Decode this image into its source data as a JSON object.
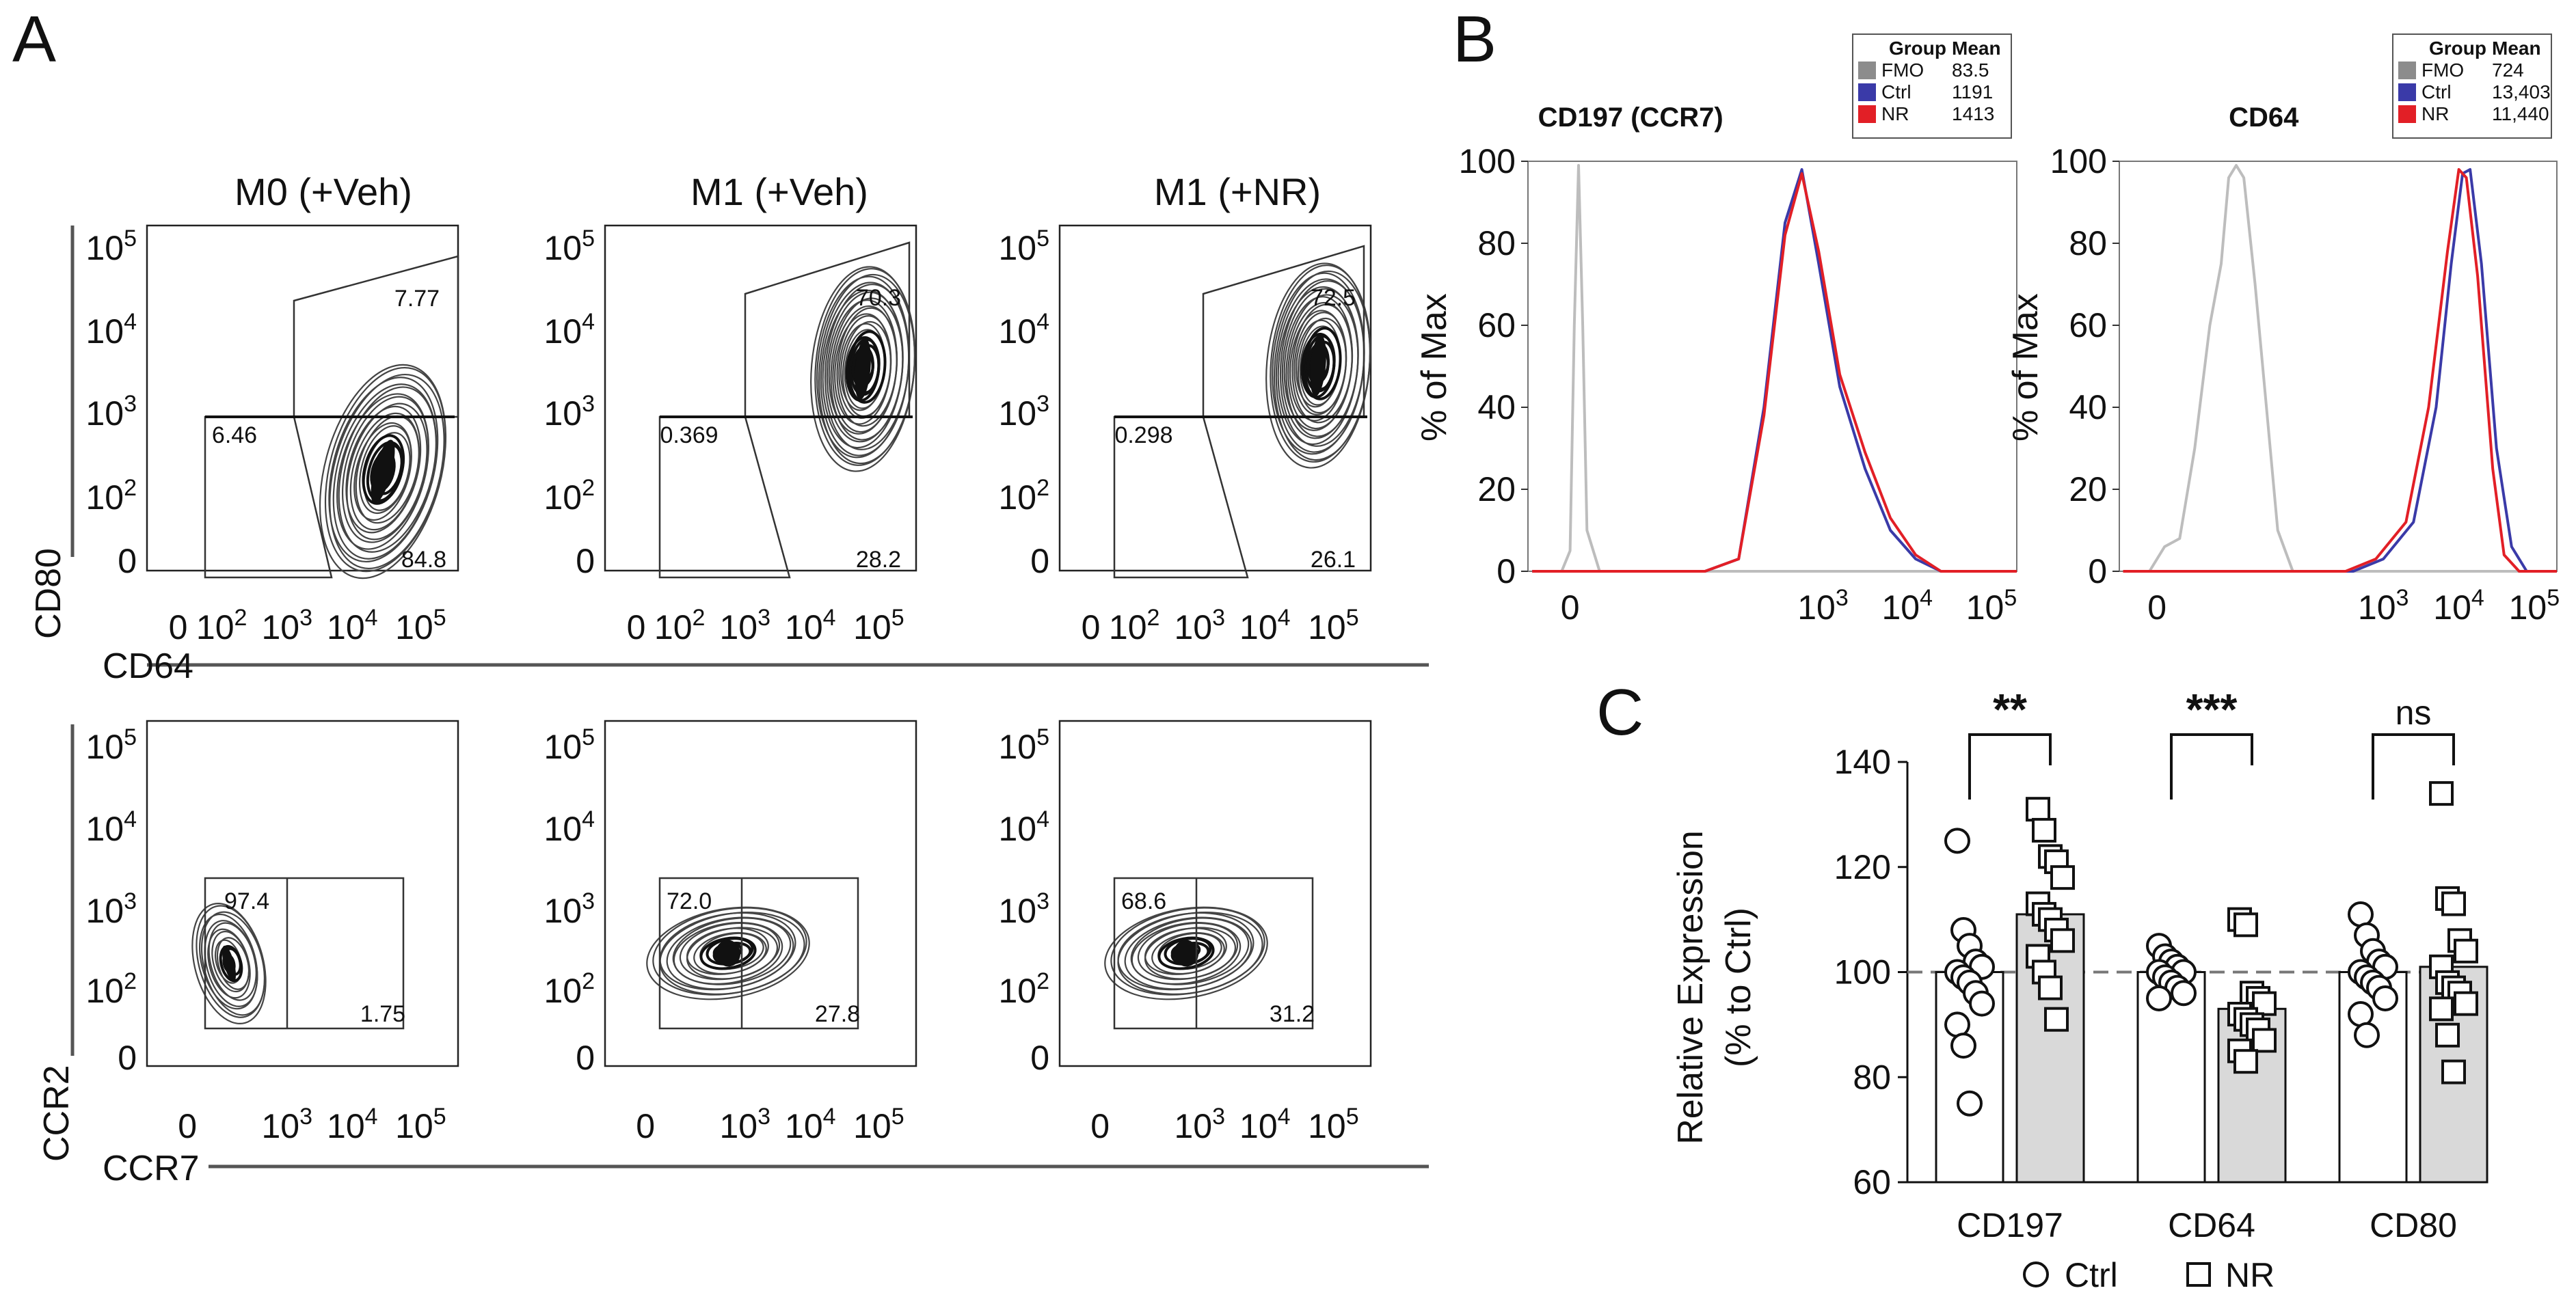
{
  "panels": {
    "A": {
      "letter": "A",
      "columns": [
        "M0 (+Veh)",
        "M1 (+Veh)",
        "M1 (+NR)"
      ],
      "rows": [
        {
          "y_label": "CD80",
          "x_label": "CD64",
          "y_ticks": [
            {
              "base": "10",
              "exp": "5"
            },
            {
              "base": "10",
              "exp": "4"
            },
            {
              "base": "10",
              "exp": "3"
            },
            {
              "base": "10",
              "exp": "2"
            },
            {
              "base": "0",
              "exp": ""
            }
          ],
          "x_ticks": [
            {
              "base": "0",
              "exp": ""
            },
            {
              "base": "10",
              "exp": "2"
            },
            {
              "base": "10",
              "exp": "3"
            },
            {
              "base": "10",
              "exp": "4"
            },
            {
              "base": "10",
              "exp": "5"
            }
          ],
          "plots": [
            {
              "gate_values": [
                "7.77",
                "6.46",
                "84.8"
              ]
            },
            {
              "gate_values": [
                "70.3",
                "0.369",
                "28.2"
              ]
            },
            {
              "gate_values": [
                "72.5",
                "0.298",
                "26.1"
              ]
            }
          ]
        },
        {
          "y_label": "CCR2",
          "x_label": "CCR7",
          "y_ticks": [
            {
              "base": "10",
              "exp": "5"
            },
            {
              "base": "10",
              "exp": "4"
            },
            {
              "base": "10",
              "exp": "3"
            },
            {
              "base": "10",
              "exp": "2"
            },
            {
              "base": "0",
              "exp": ""
            }
          ],
          "x_ticks": [
            {
              "base": "0",
              "exp": ""
            },
            {
              "base": "10",
              "exp": "3"
            },
            {
              "base": "10",
              "exp": "4"
            },
            {
              "base": "10",
              "exp": "5"
            }
          ],
          "plots": [
            {
              "gate_values": [
                "97.4",
                "1.75"
              ]
            },
            {
              "gate_values": [
                "72.0",
                "27.8"
              ]
            },
            {
              "gate_values": [
                "68.6",
                "31.2"
              ]
            }
          ]
        }
      ]
    },
    "B": {
      "letter": "B",
      "y_label": "% of Max",
      "legend_headers": [
        "Group",
        "Mean"
      ],
      "legend_groups": [
        "FMO",
        "Ctrl",
        "NR"
      ],
      "x_ticks": [
        {
          "base": "0",
          "exp": ""
        },
        {
          "base": "10",
          "exp": "3"
        },
        {
          "base": "10",
          "exp": "4"
        },
        {
          "base": "10",
          "exp": "5"
        }
      ]
    },
    "C": {
      "letter": "C",
      "y_label_line1": "Relative Expression",
      "y_label_line2": "(% to Ctrl)"
    }
  },
  "chart_data": [
    {
      "type": "line",
      "panel": "B",
      "title": "CD197 (CCR7)",
      "ylabel": "% of Max",
      "ylim": [
        0,
        100
      ],
      "xlim_log10": [
        -0.5,
        5.3
      ],
      "yticks": [
        0,
        20,
        40,
        60,
        80,
        100
      ],
      "legend": [
        {
          "group": "FMO",
          "mean": "83.5",
          "color": "#8c8c8c"
        },
        {
          "group": "Ctrl",
          "mean": "1191",
          "color": "#3a3aa8"
        },
        {
          "group": "NR",
          "mean": "1413",
          "color": "#e21f26"
        }
      ],
      "series": [
        {
          "name": "FMO",
          "color": "#bdbdbd",
          "points": [
            [
              -0.45,
              0
            ],
            [
              -0.1,
              0
            ],
            [
              0,
              5
            ],
            [
              0.05,
              60
            ],
            [
              0.1,
              99
            ],
            [
              0.15,
              60
            ],
            [
              0.2,
              10
            ],
            [
              0.35,
              0
            ],
            [
              5.3,
              0
            ]
          ]
        },
        {
          "name": "Ctrl",
          "color": "#3a3aa8",
          "points": [
            [
              -0.45,
              0
            ],
            [
              1.6,
              0
            ],
            [
              2.0,
              3
            ],
            [
              2.3,
              40
            ],
            [
              2.55,
              85
            ],
            [
              2.75,
              98
            ],
            [
              2.95,
              75
            ],
            [
              3.2,
              45
            ],
            [
              3.5,
              25
            ],
            [
              3.8,
              10
            ],
            [
              4.1,
              3
            ],
            [
              4.4,
              0
            ],
            [
              5.3,
              0
            ]
          ]
        },
        {
          "name": "NR",
          "color": "#e21f26",
          "points": [
            [
              -0.45,
              0
            ],
            [
              1.6,
              0
            ],
            [
              2.0,
              3
            ],
            [
              2.3,
              38
            ],
            [
              2.55,
              82
            ],
            [
              2.75,
              97
            ],
            [
              2.95,
              78
            ],
            [
              3.2,
              48
            ],
            [
              3.5,
              29
            ],
            [
              3.8,
              13
            ],
            [
              4.1,
              4
            ],
            [
              4.4,
              0
            ],
            [
              5.3,
              0
            ]
          ]
        }
      ],
      "xlabels": [
        "0",
        "10^3",
        "10^4",
        "10^5"
      ]
    },
    {
      "type": "line",
      "panel": "B",
      "title": "CD64",
      "ylabel": "% of Max",
      "ylim": [
        0,
        100
      ],
      "xlim_log10": [
        -0.5,
        5.3
      ],
      "yticks": [
        0,
        20,
        40,
        60,
        80,
        100
      ],
      "legend": [
        {
          "group": "FMO",
          "mean": "724",
          "color": "#8c8c8c"
        },
        {
          "group": "Ctrl",
          "mean": "13,403",
          "color": "#3a3aa8"
        },
        {
          "group": "NR",
          "mean": "11,440",
          "color": "#e21f26"
        }
      ],
      "series": [
        {
          "name": "FMO",
          "color": "#bdbdbd",
          "points": [
            [
              -0.45,
              0
            ],
            [
              -0.1,
              0
            ],
            [
              0.1,
              6
            ],
            [
              0.3,
              8
            ],
            [
              0.5,
              30
            ],
            [
              0.7,
              60
            ],
            [
              0.85,
              75
            ],
            [
              0.95,
              96
            ],
            [
              1.05,
              99
            ],
            [
              1.15,
              96
            ],
            [
              1.3,
              70
            ],
            [
              1.45,
              40
            ],
            [
              1.6,
              10
            ],
            [
              1.8,
              0
            ],
            [
              5.3,
              0
            ]
          ]
        },
        {
          "name": "Ctrl",
          "color": "#3a3aa8",
          "points": [
            [
              -0.45,
              0
            ],
            [
              2.6,
              0
            ],
            [
              3.0,
              3
            ],
            [
              3.4,
              12
            ],
            [
              3.7,
              40
            ],
            [
              3.9,
              75
            ],
            [
              4.05,
              97
            ],
            [
              4.15,
              98
            ],
            [
              4.3,
              75
            ],
            [
              4.5,
              30
            ],
            [
              4.7,
              6
            ],
            [
              4.9,
              0
            ],
            [
              5.3,
              0
            ]
          ]
        },
        {
          "name": "NR",
          "color": "#e21f26",
          "points": [
            [
              -0.45,
              0
            ],
            [
              2.5,
              0
            ],
            [
              2.9,
              3
            ],
            [
              3.3,
              12
            ],
            [
              3.6,
              40
            ],
            [
              3.85,
              78
            ],
            [
              4.0,
              98
            ],
            [
              4.1,
              96
            ],
            [
              4.25,
              72
            ],
            [
              4.45,
              25
            ],
            [
              4.6,
              4
            ],
            [
              4.8,
              0
            ],
            [
              5.3,
              0
            ]
          ]
        }
      ],
      "xlabels": [
        "0",
        "10^3",
        "10^4",
        "10^5"
      ]
    },
    {
      "type": "bar",
      "panel": "C",
      "ylabel": "Relative Expression (% to Ctrl)",
      "ylim": [
        60,
        140
      ],
      "yticks": [
        60,
        80,
        100,
        120,
        140
      ],
      "reference_line": 100,
      "categories": [
        "CD197",
        "CD64",
        "CD80"
      ],
      "significance": [
        "**",
        "***",
        "ns"
      ],
      "legend": [
        "Ctrl",
        "NR"
      ],
      "series": [
        {
          "name": "Ctrl",
          "fill": "#ffffff",
          "marker": "circle",
          "values": [
            100,
            100,
            100
          ],
          "points": [
            [
              125,
              108,
              105,
              102,
              101,
              100,
              99,
              98,
              96,
              94,
              90,
              86,
              75
            ],
            [
              105,
              103,
              102,
              101,
              100,
              100,
              99,
              98,
              97,
              96,
              95
            ],
            [
              111,
              107,
              104,
              102,
              101,
              100,
              99,
              98,
              97,
              95,
              92,
              88
            ]
          ]
        },
        {
          "name": "NR",
          "fill": "#d9d9d9",
          "marker": "square",
          "values": [
            111,
            93,
            101
          ],
          "points": [
            [
              131,
              127,
              122,
              121,
              118,
              113,
              111,
              110,
              108,
              106,
              103,
              100,
              97,
              91
            ],
            [
              110,
              109,
              96,
              95,
              94,
              92,
              91,
              90,
              89,
              87,
              85,
              83
            ],
            [
              134,
              114,
              113,
              106,
              104,
              101,
              98,
              97,
              96,
              94,
              93,
              88,
              81
            ]
          ]
        }
      ]
    }
  ]
}
